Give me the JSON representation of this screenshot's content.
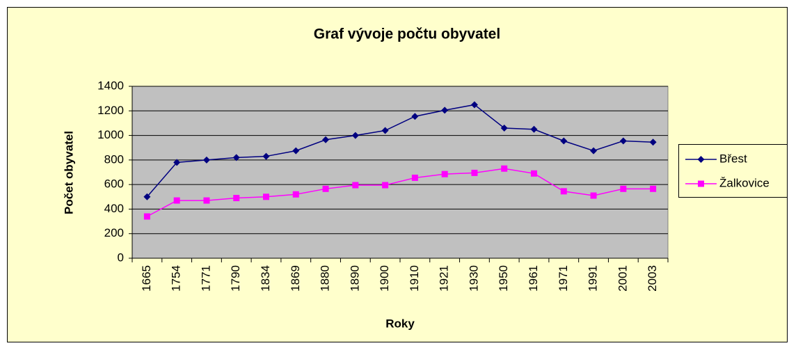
{
  "chart_data": {
    "type": "line",
    "title": "Graf vývoje počtu obyvatel",
    "xlabel": "Roky",
    "ylabel": "Počet obyvatel",
    "categories": [
      "1665",
      "1754",
      "1771",
      "1790",
      "1834",
      "1869",
      "1880",
      "1890",
      "1900",
      "1910",
      "1921",
      "1930",
      "1950",
      "1961",
      "1971",
      "1991",
      "2001",
      "2003"
    ],
    "series": [
      {
        "name": "Břest",
        "color": "#000080",
        "marker": "diamond",
        "values": [
          500,
          780,
          800,
          820,
          830,
          875,
          965,
          1000,
          1040,
          1155,
          1205,
          1250,
          1060,
          1050,
          955,
          875,
          955,
          945
        ]
      },
      {
        "name": "Žalkovice",
        "color": "#ff00ff",
        "marker": "square",
        "values": [
          340,
          470,
          470,
          490,
          500,
          520,
          565,
          595,
          595,
          655,
          685,
          695,
          730,
          690,
          545,
          510,
          565,
          565
        ]
      }
    ],
    "ylim": [
      0,
      1400
    ],
    "yticks": [
      0,
      200,
      400,
      600,
      800,
      1000,
      1200,
      1400
    ],
    "grid": true,
    "legend": "right"
  }
}
